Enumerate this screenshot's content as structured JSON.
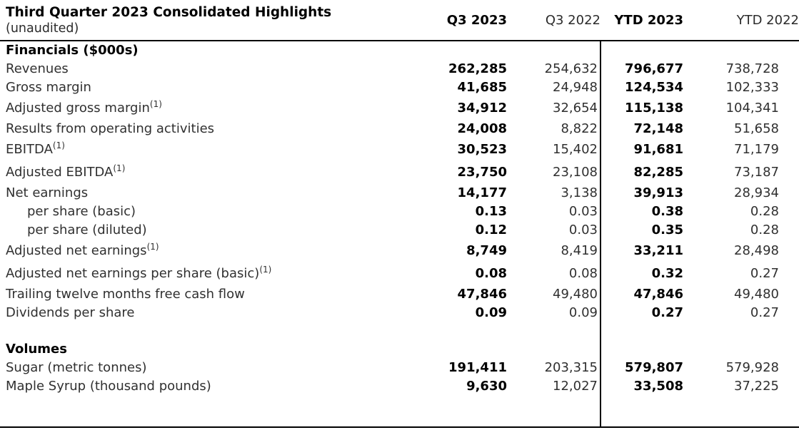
{
  "page": {
    "title": "Third Quarter 2023 Consolidated Highlights",
    "subtitle": "(unaudited)"
  },
  "table": {
    "columns": [
      {
        "label": "Q3 2023",
        "bold": true
      },
      {
        "label": "Q3 2022",
        "bold": false
      },
      {
        "label": "YTD 2023",
        "bold": true
      },
      {
        "label": "YTD 2022",
        "bold": false
      }
    ],
    "sections": [
      {
        "heading": "Financials ($000s)",
        "rows": [
          {
            "label": "Revenues",
            "values": [
              "262,285",
              "254,632",
              "796,677",
              "738,728"
            ]
          },
          {
            "label": "Gross margin",
            "values": [
              "41,685",
              "24,948",
              "124,534",
              "102,333"
            ]
          },
          {
            "label": "Adjusted gross margin",
            "footnote": "(1)",
            "values": [
              "34,912",
              "32,654",
              "115,138",
              "104,341"
            ]
          },
          {
            "label": "Results from operating activities",
            "values": [
              "24,008",
              "8,822",
              "72,148",
              "51,658"
            ]
          },
          {
            "label": "EBITDA",
            "footnote": "(1)",
            "values": [
              "30,523",
              "15,402",
              "91,681",
              "71,179"
            ]
          },
          {
            "label": "Adjusted EBITDA",
            "footnote": "(1)",
            "values": [
              "23,750",
              "23,108",
              "82,285",
              "73,187"
            ]
          },
          {
            "label": "Net earnings",
            "values": [
              "14,177",
              "3,138",
              "39,913",
              "28,934"
            ]
          },
          {
            "label": "per share (basic)",
            "indent": true,
            "values": [
              "0.13",
              "0.03",
              "0.38",
              "0.28"
            ]
          },
          {
            "label": "per share (diluted)",
            "indent": true,
            "values": [
              "0.12",
              "0.03",
              "0.35",
              "0.28"
            ]
          },
          {
            "label": "Adjusted net earnings",
            "footnote": "(1)",
            "values": [
              "8,749",
              "8,419",
              "33,211",
              "28,498"
            ]
          },
          {
            "label": "Adjusted net earnings per share (basic)",
            "footnote": "(1)",
            "values": [
              "0.08",
              "0.08",
              "0.32",
              "0.27"
            ]
          },
          {
            "label": "Trailing twelve months free cash flow",
            "values": [
              "47,846",
              "49,480",
              "47,846",
              "49,480"
            ]
          },
          {
            "label": "Dividends per share",
            "values": [
              "0.09",
              "0.09",
              "0.27",
              "0.27"
            ]
          }
        ]
      },
      {
        "heading": "Volumes",
        "rows": [
          {
            "label": "Sugar (metric tonnes)",
            "values": [
              "191,411",
              "203,315",
              "579,807",
              "579,928"
            ]
          },
          {
            "label": "Maple Syrup (thousand pounds)",
            "values": [
              "9,630",
              "12,027",
              "33,508",
              "37,225"
            ]
          }
        ]
      }
    ]
  },
  "colors": {
    "text": "#303030",
    "emphasis_text": "#000000",
    "border": "#000000",
    "background": "#ffffff"
  }
}
